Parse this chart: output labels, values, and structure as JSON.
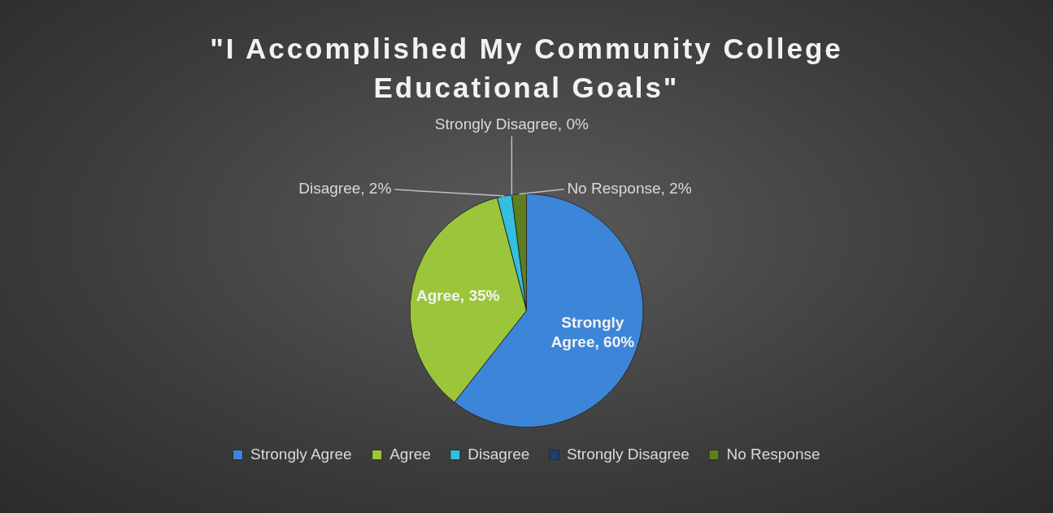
{
  "chart_data": {
    "type": "pie",
    "title": "\"I Accomplished My Community College Educational Goals\"",
    "categories": [
      "Strongly Agree",
      "Agree",
      "Disagree",
      "Strongly Disagree",
      "No Response"
    ],
    "values": [
      60,
      35,
      2,
      0,
      2
    ],
    "value_labels": [
      "Strongly Agree, 60%",
      "Agree, 35%",
      "Disagree, 2%",
      "Strongly Disagree, 0%",
      "No Response, 2%"
    ],
    "colors": [
      "#3d85d8",
      "#9bc63b",
      "#33bfe0",
      "#1f3f73",
      "#5e7f1e"
    ],
    "legend": "bottom"
  }
}
